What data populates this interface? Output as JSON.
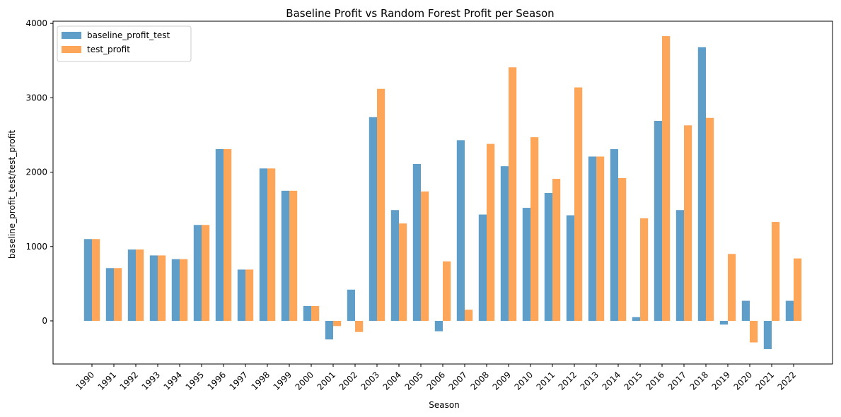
{
  "chart_data": {
    "type": "bar",
    "title": "Baseline Profit vs Random Forest Profit per Season",
    "xlabel": "Season",
    "ylabel": "baseline_profit_test/test_profit",
    "categories": [
      "1990",
      "1991",
      "1992",
      "1993",
      "1994",
      "1995",
      "1996",
      "1997",
      "1998",
      "1999",
      "2000",
      "2001",
      "2002",
      "2003",
      "2004",
      "2005",
      "2006",
      "2007",
      "2008",
      "2009",
      "2010",
      "2011",
      "2012",
      "2013",
      "2014",
      "2015",
      "2016",
      "2017",
      "2018",
      "2019",
      "2020",
      "2021",
      "2022"
    ],
    "series": [
      {
        "name": "baseline_profit_test",
        "color": "#5f9ec9",
        "values": [
          1100,
          710,
          960,
          880,
          830,
          1290,
          2310,
          690,
          2050,
          1750,
          200,
          -250,
          420,
          2740,
          1490,
          2110,
          -140,
          2430,
          1430,
          2080,
          1520,
          1720,
          1420,
          2210,
          2310,
          50,
          2690,
          1490,
          3680,
          -50,
          270,
          -380,
          270
        ]
      },
      {
        "name": "test_profit",
        "color": "#fda65a",
        "values": [
          1100,
          710,
          960,
          880,
          830,
          1290,
          2310,
          690,
          2050,
          1750,
          200,
          -70,
          -150,
          3120,
          1310,
          1740,
          800,
          150,
          2380,
          3410,
          2470,
          1910,
          3140,
          2210,
          1920,
          1380,
          3830,
          2630,
          2730,
          900,
          -290,
          1330,
          840
        ]
      }
    ],
    "yticks": [
      0,
      1000,
      2000,
      3000,
      4000
    ],
    "ylim": [
      -580,
      4030
    ],
    "grid": false,
    "legend_position": "upper-left"
  }
}
